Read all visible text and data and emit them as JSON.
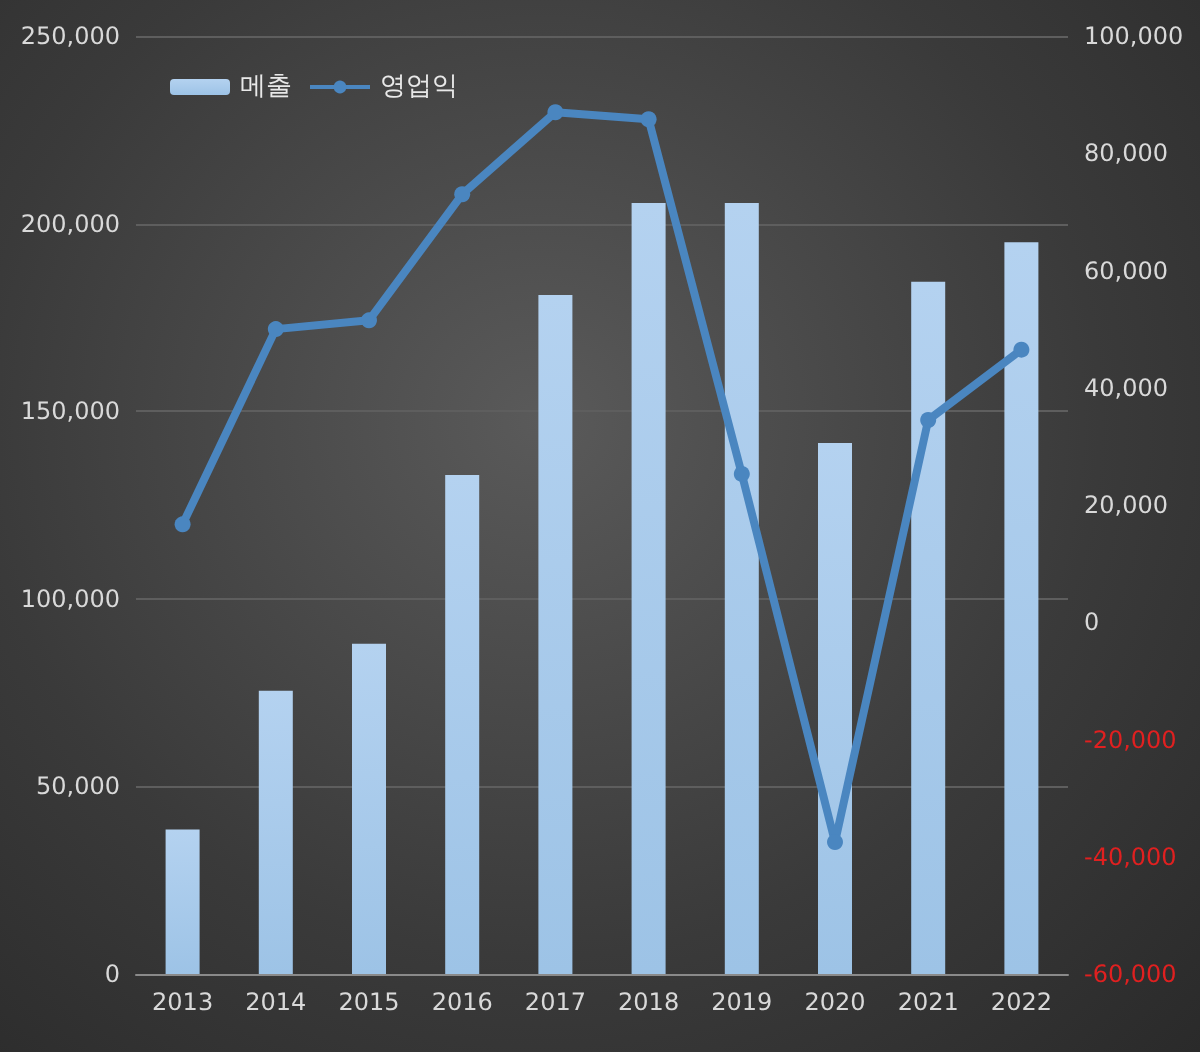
{
  "chart_data": {
    "type": "bar",
    "categories": [
      "2013",
      "2014",
      "2015",
      "2016",
      "2017",
      "2018",
      "2019",
      "2020",
      "2021",
      "2022"
    ],
    "series": [
      {
        "name": "메출",
        "color": "#9dc3e6",
        "values": [
          38500,
          75500,
          88000,
          133000,
          181000,
          205500,
          205500,
          141500,
          184500,
          195000
        ]
      },
      {
        "name": "영업익",
        "type": "line",
        "axis": "y2",
        "color": "#4a86c0",
        "marker": "circle",
        "values": [
          16700,
          50000,
          51500,
          73000,
          87000,
          85800,
          25300,
          -37500,
          34500,
          46500
        ]
      }
    ],
    "ylim": [
      0,
      250000
    ],
    "yticks": [
      0,
      {
        "value": 50000,
        "label": "50,000"
      },
      {
        "value": 100000,
        "label": "100,000"
      },
      {
        "value": 150000,
        "label": "150,000"
      },
      {
        "value": 200000,
        "label": "200,000"
      },
      {
        "value": 250000,
        "label": "250,000"
      }
    ],
    "y2lim": [
      -60000,
      100000
    ],
    "y2ticks": [
      {
        "value": -60000,
        "label": "-60,000"
      },
      {
        "value": -40000,
        "label": "-40,000"
      },
      {
        "value": -20000,
        "label": "-20,000"
      },
      0,
      {
        "value": 20000,
        "label": "20,000"
      },
      {
        "value": 40000,
        "label": "40,000"
      },
      {
        "value": 60000,
        "label": "60,000"
      },
      {
        "value": 80000,
        "label": "80,000"
      },
      {
        "value": 100000,
        "label": "100,000"
      }
    ],
    "grid": "y",
    "legend": "top left"
  }
}
